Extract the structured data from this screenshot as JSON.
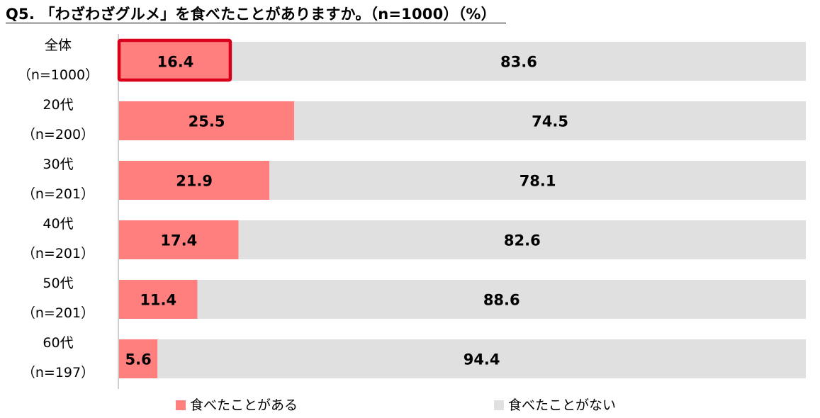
{
  "chart_data": {
    "type": "bar",
    "orientation": "horizontal",
    "stacked": true,
    "title": "Q5. 「わざわざグルメ」を食べたことがありますか。（n=1000）（%）",
    "categories": [
      [
        "全体",
        "（n=1000）"
      ],
      [
        "20代",
        "（n=200）"
      ],
      [
        "30代",
        "（n=201）"
      ],
      [
        "40代",
        "（n=201）"
      ],
      [
        "50代",
        "（n=201）"
      ],
      [
        "60代",
        "（n=197）"
      ]
    ],
    "series": [
      {
        "name": "食べたことがある",
        "color": "#ff7f7f",
        "values": [
          16.4,
          25.5,
          21.9,
          17.4,
          11.4,
          5.6
        ]
      },
      {
        "name": "食べたことがない",
        "color": "#e0e0e0",
        "values": [
          83.6,
          74.5,
          78.1,
          82.6,
          88.6,
          94.4
        ]
      }
    ],
    "xlim": [
      0,
      100
    ],
    "highlight": {
      "category_index": 0,
      "series_index": 0,
      "border_color": "#d9001b"
    },
    "legend_position": "bottom",
    "grid": false
  }
}
